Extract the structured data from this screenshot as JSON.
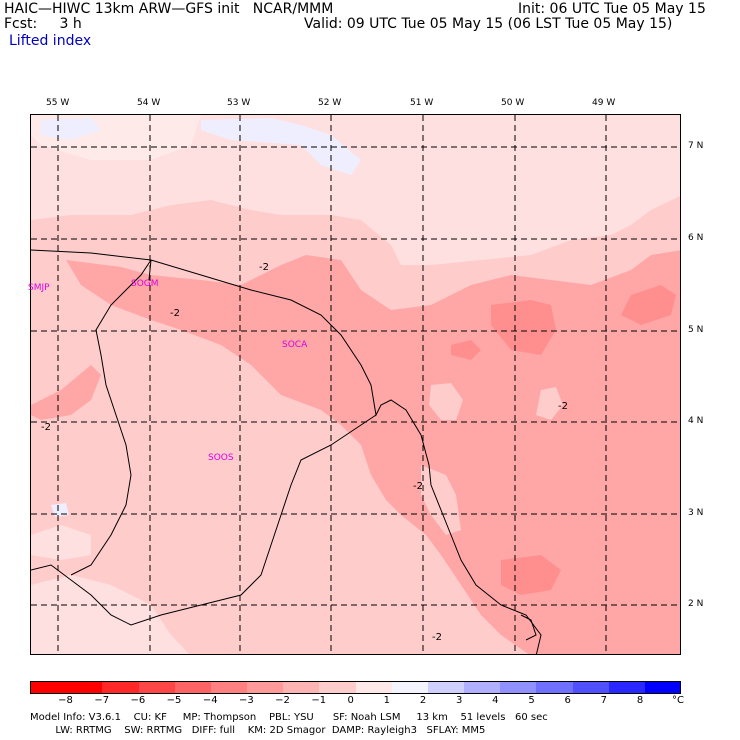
{
  "header": {
    "model_title": "HAIC—HIWC 13km ARW—GFS init   NCAR/MMM",
    "init": "Init: 06 UTC Tue 05 May 15",
    "fcst": "Fcst:     3 h",
    "valid": "Valid: 09 UTC Tue 05 May 15 (06 LST Tue 05 May 15)",
    "field": "Lifted index"
  },
  "lon_labels": [
    "55 W",
    "54 W",
    "53 W",
    "52 W",
    "51 W",
    "50 W",
    "49 W"
  ],
  "lat_labels": [
    "7 N",
    "6 N",
    "5 N",
    "4 N",
    "3 N",
    "2 N"
  ],
  "stations": [
    "SMJP",
    "SOGM",
    "SOCA",
    "SOOS"
  ],
  "contour_labels": [
    "-2",
    "-2",
    "-2",
    "-2",
    "-2",
    "-2"
  ],
  "colorbar": {
    "ticks": [
      "−8",
      "−7",
      "−6",
      "−5",
      "−4",
      "−3",
      "−2",
      "−1",
      "0",
      "1",
      "2",
      "3",
      "4",
      "5",
      "6",
      "7",
      "8"
    ],
    "unit": "°C",
    "colors": [
      "#ff0000",
      "#ff2828",
      "#ff4646",
      "#ff6464",
      "#ff8080",
      "#ff9a9a",
      "#ffb4b4",
      "#ffcccc",
      "#ffe8e8",
      "#f4f4ff",
      "#d0d0ff",
      "#b0b0ff",
      "#9090ff",
      "#7070ff",
      "#5050ff",
      "#2828ff",
      "#0000ff"
    ]
  },
  "footer": {
    "line1": "Model Info: V3.6.1    CU: KF     MP: Thompson    PBL: YSU      SF: Noah LSM     13 km    51 levels   60 sec",
    "line2": "        LW: RRTMG    SW: RRTMG   DIFF: full    KM: 2D Smagor  DAMP: Rayleigh3   SFLAY: MM5"
  }
}
